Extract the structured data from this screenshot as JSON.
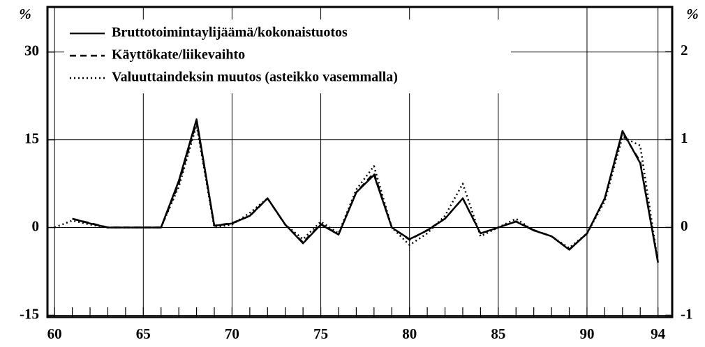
{
  "chart_data": {
    "type": "line",
    "y_unit_left": "%",
    "y_unit_right": "%",
    "x": [
      60,
      61,
      62,
      63,
      64,
      65,
      66,
      67,
      68,
      69,
      70,
      71,
      72,
      73,
      74,
      75,
      76,
      77,
      78,
      79,
      80,
      81,
      82,
      83,
      84,
      85,
      86,
      87,
      88,
      89,
      90,
      91,
      92,
      93,
      94
    ],
    "xlim": [
      59.6,
      94.8
    ],
    "xticks": [
      60,
      65,
      70,
      75,
      80,
      85,
      90,
      94
    ],
    "ylim": [
      -15.3,
      37.7
    ],
    "yticks": [
      -15,
      0,
      15,
      30
    ],
    "y2lim": [
      -1.02,
      2.51
    ],
    "y2ticks": [
      -1,
      0,
      1,
      2
    ],
    "grid": true,
    "legend": "upper left",
    "series": [
      {
        "name": "Bruttotoimintaylijäämä/kokonaistuotos",
        "color": "#000",
        "style": "solid",
        "values": [
          null,
          1.5,
          0.7,
          0,
          0,
          0,
          0,
          8,
          18.5,
          0.3,
          0.7,
          2,
          5,
          0.5,
          -2.7,
          0.5,
          -1.2,
          6,
          9,
          0,
          -2,
          -0.5,
          1.5,
          5,
          -1,
          0,
          1,
          -0.5,
          -1.5,
          -3.8,
          -1,
          5,
          16.5,
          11,
          -6
        ]
      },
      {
        "name": "Käyttökate/liikevaihto",
        "color": "#000",
        "style": "dashed",
        "axis": "y2",
        "values": [
          null,
          0.1,
          0.05,
          0,
          0,
          0,
          0,
          0.5,
          1.2,
          0.02,
          0.05,
          0.13,
          0.33,
          0.03,
          -0.17,
          0.04,
          -0.08,
          0.4,
          0.62,
          0,
          -0.14,
          -0.03,
          0.1,
          0.33,
          -0.07,
          0,
          0.07,
          -0.03,
          -0.1,
          -0.25,
          -0.07,
          0.33,
          1.08,
          0.75,
          -0.4
        ]
      },
      {
        "name": "Valuuttaindeksin muutos (asteikko vasemmalla)",
        "color": "#000",
        "style": "dotted",
        "values": [
          0,
          1.2,
          0.5,
          0,
          0,
          0,
          0,
          7,
          17.5,
          0,
          0.5,
          2.5,
          5,
          0.5,
          -2,
          1,
          -1,
          6.5,
          10.5,
          0,
          -3,
          -1,
          2,
          7.5,
          -1.5,
          0,
          1.5,
          -0.5,
          -1.5,
          -3.5,
          -1,
          4.5,
          15.5,
          14,
          -6
        ]
      }
    ]
  }
}
